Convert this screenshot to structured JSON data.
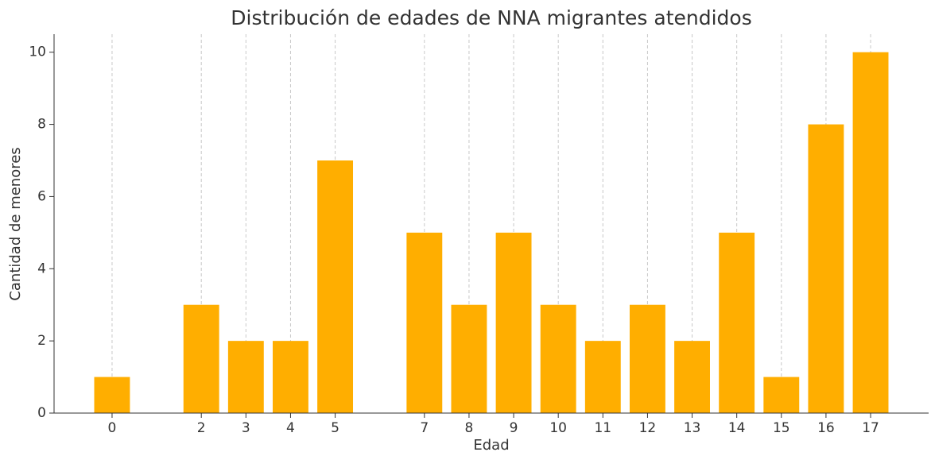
{
  "chart_data": {
    "type": "bar",
    "title": "Distribución de edades de NNA migrantes atendidos",
    "x_label": "Edad",
    "y_label": "Cantidad de menores",
    "x": [
      0,
      2,
      3,
      4,
      5,
      7,
      8,
      9,
      10,
      11,
      12,
      13,
      14,
      15,
      16,
      17
    ],
    "values": [
      1,
      3,
      2,
      2,
      7,
      5,
      3,
      5,
      3,
      2,
      3,
      2,
      5,
      1,
      8,
      10
    ],
    "color": "#ffae00",
    "xlim": [
      -1.3,
      18.3
    ],
    "xticks": [
      0,
      2,
      3,
      4,
      5,
      7,
      8,
      9,
      10,
      11,
      12,
      13,
      14,
      15,
      16,
      17
    ],
    "ylim": [
      0,
      10.5
    ],
    "yticks": [
      0,
      2,
      4,
      6,
      8,
      10
    ],
    "grid": true
  }
}
